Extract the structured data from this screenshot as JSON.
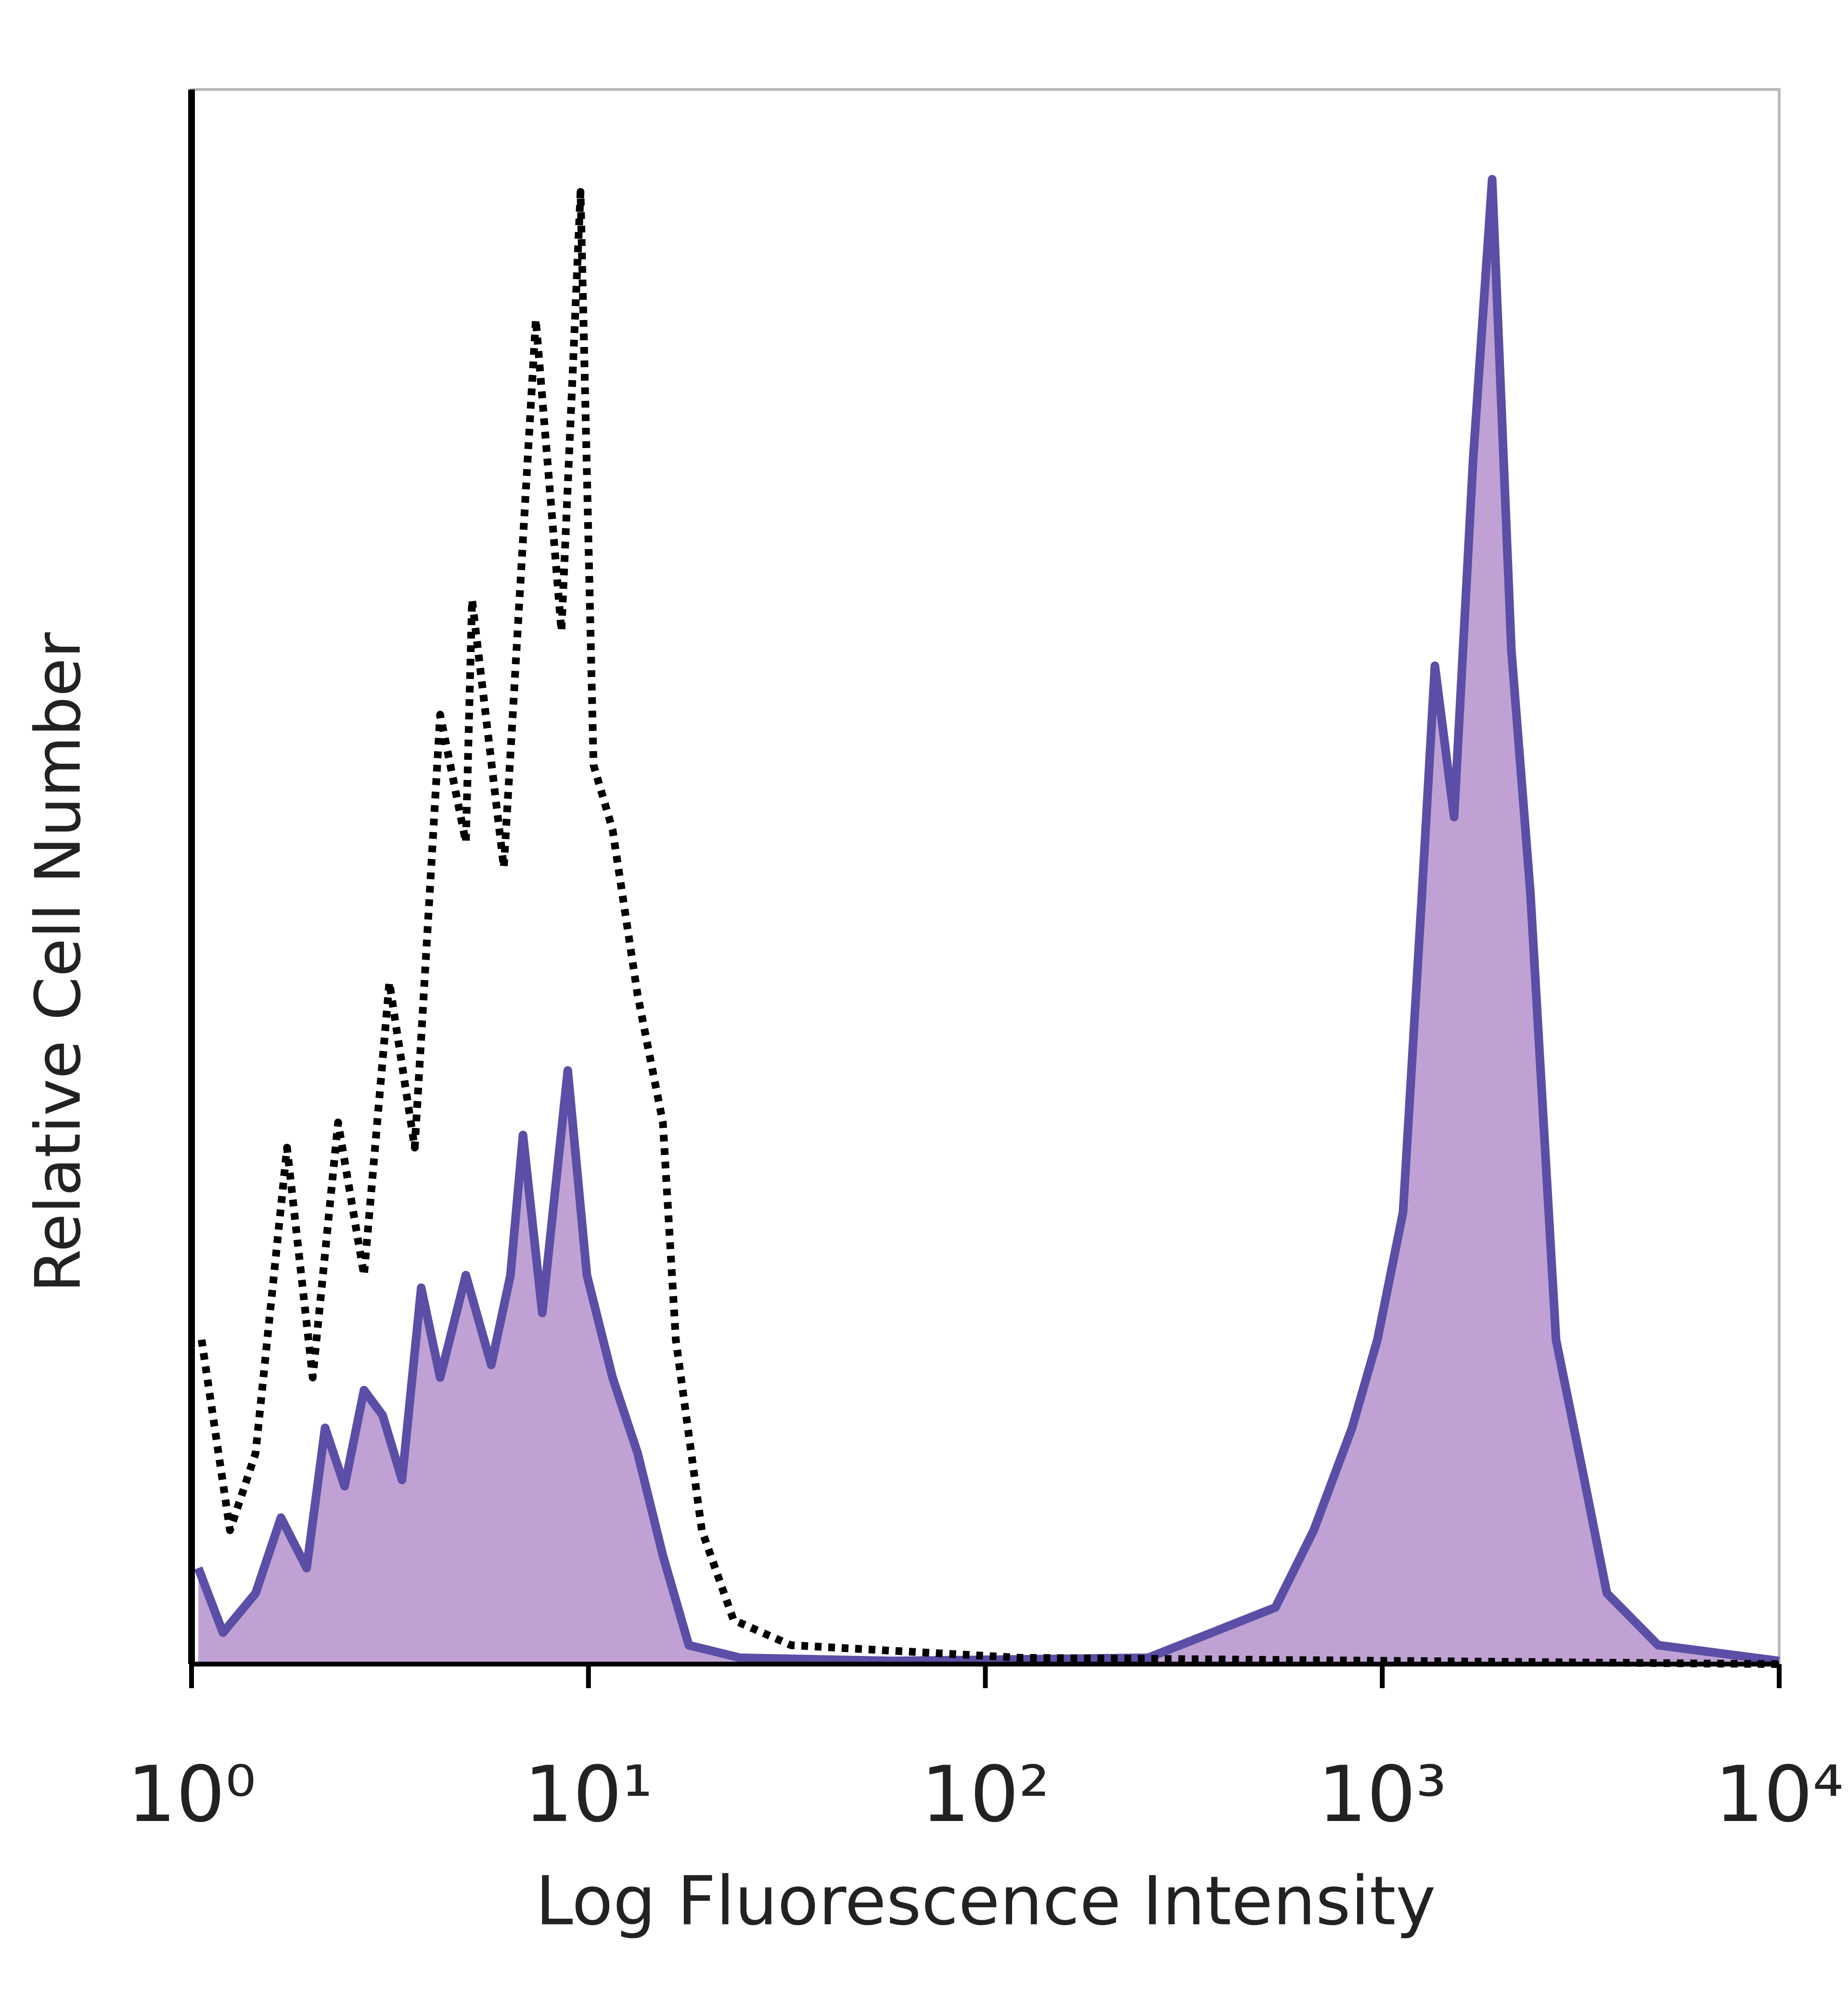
{
  "chart_data": {
    "type": "histogram-line",
    "xlabel": "Log Fluorescence Intensity",
    "ylabel": "Relative Cell Number",
    "xscale": "log",
    "xlim": [
      1,
      10000
    ],
    "ylim": [
      0,
      100
    ],
    "xticks": [
      {
        "value": 1,
        "label": "10⁰"
      },
      {
        "value": 10,
        "label": "10¹"
      },
      {
        "value": 100,
        "label": "10²"
      },
      {
        "value": 1000,
        "label": "10³"
      },
      {
        "value": 10000,
        "label": "10⁴"
      }
    ],
    "series": [
      {
        "color": "#5a4ea6",
        "fill": "#bfa2d3",
        "line_style": "solid",
        "x": [
          1.04,
          1.2,
          1.45,
          1.68,
          1.95,
          2.17,
          2.43,
          2.72,
          3.03,
          3.39,
          3.79,
          4.23,
          4.91,
          5.69,
          6.36,
          6.84,
          7.65,
          8.87,
          9.91,
          11.5,
          13.3,
          15.4,
          17.9,
          24.1,
          58.5,
          257,
          372,
          538,
          672,
          839,
          972,
          1128,
          1259,
          1357,
          1517,
          1694,
          1892,
          2115,
          2361,
          2740,
          3177,
          3681,
          4955,
          10000
        ],
        "values": [
          6.1,
          2.0,
          4.5,
          9.3,
          6.1,
          15.0,
          11.3,
          17.4,
          15.8,
          11.7,
          23.9,
          18.2,
          24.7,
          19.0,
          24.7,
          33.6,
          22.3,
          37.7,
          24.7,
          18.2,
          13.4,
          6.9,
          1.2,
          0.4,
          0.2,
          0.4,
          2.0,
          3.6,
          8.5,
          15.0,
          20.6,
          28.7,
          48.9,
          63.4,
          53.8,
          76.5,
          94.3,
          64.4,
          49.0,
          20.6,
          12.6,
          4.5,
          1.2,
          0.2
        ]
      },
      {
        "color": "#000000",
        "fill": null,
        "line_style": "dotted",
        "x": [
          1.06,
          1.25,
          1.45,
          1.74,
          2.02,
          2.34,
          2.72,
          3.15,
          3.65,
          4.23,
          4.91,
          5.09,
          6.12,
          7.37,
          8.55,
          9.55,
          10.3,
          11.5,
          13.3,
          15.4,
          16.6,
          19.3,
          23.2,
          32.4,
          123,
          10000
        ],
        "values": [
          20.6,
          8.5,
          13.4,
          32.8,
          18.2,
          34.4,
          24.7,
          43.3,
          32.8,
          60.3,
          52.2,
          67.6,
          50.6,
          85.4,
          65.6,
          93.5,
          57.1,
          53.0,
          42.5,
          34.4,
          20.6,
          8.5,
          2.8,
          1.2,
          0.4,
          0
        ]
      }
    ]
  }
}
